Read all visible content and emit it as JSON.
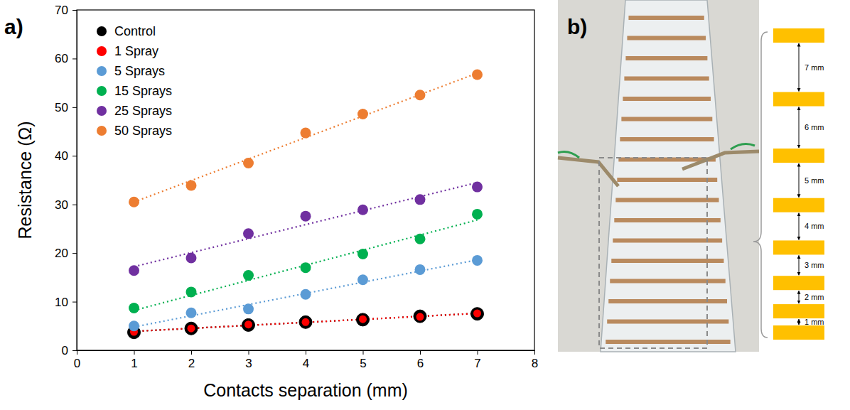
{
  "chart_data": {
    "type": "scatter",
    "x_label": "Contacts separation (mm)",
    "y_label": "Resistance (Ω)",
    "x": [
      1,
      2,
      3,
      4,
      5,
      6,
      7
    ],
    "xlim": [
      0,
      8
    ],
    "xticks": [
      0,
      1,
      2,
      3,
      4,
      5,
      6,
      7,
      8
    ],
    "ylim": [
      0,
      70
    ],
    "yticks": [
      0,
      10,
      20,
      30,
      40,
      50,
      60,
      70
    ],
    "grid": false,
    "legend": "upper left",
    "marker": "circle",
    "series": [
      {
        "name": "Control",
        "color": "#000000",
        "values": [
          3.7,
          4.5,
          5.2,
          5.8,
          6.3,
          7.0,
          7.5
        ],
        "line_style": "dotted",
        "fit": {
          "x": [
            1,
            7
          ],
          "values": [
            3.9,
            7.6
          ]
        }
      },
      {
        "name": "1 Spray",
        "color": "#ff0000",
        "values": [
          3.8,
          4.5,
          5.3,
          5.8,
          6.4,
          6.9,
          7.6
        ],
        "line_style": "dotted",
        "fit": {
          "x": [
            1,
            7
          ],
          "values": [
            3.9,
            7.6
          ]
        }
      },
      {
        "name": "5 Sprays",
        "color": "#5b9bd5",
        "values": [
          5.0,
          7.7,
          8.5,
          11.5,
          14.5,
          16.6,
          18.5
        ],
        "line_style": "dotted",
        "fit": {
          "x": [
            1,
            7
          ],
          "values": [
            4.8,
            18.6
          ]
        }
      },
      {
        "name": "15 Sprays",
        "color": "#00b050",
        "values": [
          8.7,
          12.0,
          15.4,
          17.0,
          19.8,
          22.9,
          28.0
        ],
        "line_style": "dotted",
        "fit": {
          "x": [
            1,
            7
          ],
          "values": [
            8.2,
            26.8
          ]
        }
      },
      {
        "name": "25 Sprays",
        "color": "#7030a0",
        "values": [
          16.4,
          19.0,
          24.0,
          27.6,
          28.9,
          31.0,
          33.6
        ],
        "line_style": "dotted",
        "fit": {
          "x": [
            1,
            7
          ],
          "values": [
            17.2,
            34.5
          ]
        }
      },
      {
        "name": "50 Sprays",
        "color": "#ed7d31",
        "values": [
          30.5,
          33.9,
          38.5,
          44.7,
          48.6,
          52.5,
          56.7
        ],
        "line_style": "dotted",
        "fit": {
          "x": [
            1,
            7
          ],
          "values": [
            30.5,
            57.0
          ]
        }
      }
    ]
  },
  "figure": {
    "panel_labels": [
      "a)",
      "b)"
    ],
    "schematic": {
      "gaps": [
        7,
        6,
        5,
        4,
        3,
        2,
        1
      ],
      "gap_labels": [
        "7 mm",
        "6 mm",
        "5 mm",
        "4 mm",
        "3 mm",
        "2 mm",
        "1 mm"
      ],
      "color": "#ffc000"
    }
  }
}
